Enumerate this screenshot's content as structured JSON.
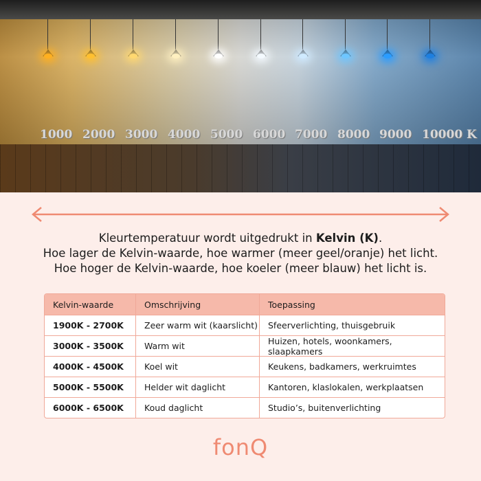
{
  "hero": {
    "kelvin_labels": [
      "1000",
      "2000",
      "3000",
      "4000",
      "5000",
      "6000",
      "7000",
      "8000",
      "9000",
      "10000 K"
    ],
    "lamp_colors": [
      "#ffb020",
      "#ffc030",
      "#ffd870",
      "#fff0c0",
      "#ffffff",
      "#f4faff",
      "#cfeaff",
      "#6ec6ff",
      "#2a9cff",
      "#1e7fe0"
    ]
  },
  "accent": "#ef8a72",
  "intro": {
    "line1_prefix": "Kleurtemperatuur wordt uitgedrukt in ",
    "line1_bold": "Kelvin (K)",
    "line1_suffix": ".",
    "line2": "Hoe lager de Kelvin-waarde, hoe warmer (meer geel/oranje) het licht.",
    "line3": "Hoe hoger de Kelvin-waarde, hoe koeler (meer blauw) het licht is."
  },
  "table": {
    "headers": [
      "Kelvin-waarde",
      "Omschrijving",
      "Toepassing"
    ],
    "rows": [
      [
        "1900K - 2700K",
        "Zeer warm wit (kaarslicht)",
        "Sfeerverlichting, thuisgebruik"
      ],
      [
        "3000K - 3500K",
        "Warm wit",
        "Huizen, hotels, woonkamers, slaapkamers"
      ],
      [
        "4000K - 4500K",
        "Koel wit",
        "Keukens, badkamers, werkruimtes"
      ],
      [
        "5000K - 5500K",
        "Helder wit daglicht",
        "Kantoren, klaslokalen, werkplaatsen"
      ],
      [
        "6000K - 6500K",
        "Koud daglicht",
        "Studio’s, buitenverlichting"
      ]
    ]
  },
  "logo": "fonQ"
}
